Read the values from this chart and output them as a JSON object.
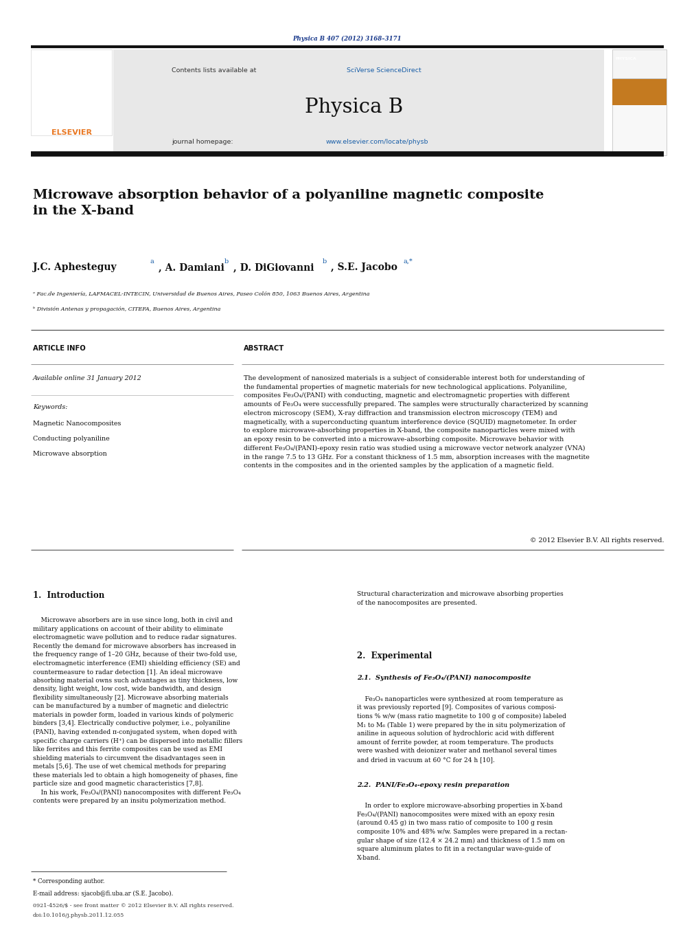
{
  "page_width": 9.92,
  "page_height": 13.23,
  "background_color": "#ffffff",
  "header_journal_ref": "Physica B 407 (2012) 3168–3171",
  "header_journal_ref_color": "#1a3a8c",
  "elsevier_text_color": "#e87722",
  "journal_name": "Physica B",
  "header_bg_color": "#e8e8e8",
  "sciverse_color": "#1a5fa8",
  "link_color": "#1a5fa8",
  "paper_title": "Microwave absorption behavior of a polyaniline magnetic composite\nin the X-band",
  "affil_a": "ᵃ Fac.de Ingeniería, LAFMACEL-INTECIN, Universidad de Buenos Aires, Paseo Colón 850, 1063 Buenos Aires, Argentina",
  "affil_b": "ᵇ División Antenas y propagación, CITEFA, Buenos Aires, Argentina",
  "section_article_info": "ARTICLE INFO",
  "section_abstract": "ABSTRACT",
  "available_online": "Available online 31 January 2012",
  "keywords_header": "Keywords:",
  "keyword1": "Magnetic Nanocomposites",
  "keyword2": "Conducting polyaniline",
  "keyword3": "Microwave absorption",
  "abstract_text": "The development of nanosized materials is a subject of considerable interest both for understanding of\nthe fundamental properties of magnetic materials for new technological applications. Polyaniline,\ncomposites Fe₃O₄/(PANI) with conducting, magnetic and electromagnetic properties with different\namounts of Fe₃O₄ were successfully prepared. The samples were structurally characterized by scanning\nelectron microscopy (SEM), X-ray diffraction and transmission electron microscopy (TEM) and\nmagnetically, with a superconducting quantum interference device (SQUID) magnetometer. In order\nto explore microwave-absorbing properties in X-band, the composite nanoparticles were mixed with\nan epoxy resin to be converted into a microwave-absorbing composite. Microwave behavior with\ndifferent Fe₃O₄/(PANI)-epoxy resin ratio was studied using a microwave vector network analyzer (VNA)\nin the range 7.5 to 13 GHz. For a constant thickness of 1.5 mm, absorption increases with the magnetite\ncontents in the composites and in the oriented samples by the application of a magnetic field.",
  "copyright_text": "© 2012 Elsevier B.V. All rights reserved.",
  "section1_title": "1.  Introduction",
  "section1_col1": "    Microwave absorbers are in use since long, both in civil and\nmilitary applications on account of their ability to eliminate\nelectromagnetic wave pollution and to reduce radar signatures.\nRecently the demand for microwave absorbers has increased in\nthe frequency range of 1–20 GHz, because of their two-fold use,\nelectromagnetic interference (EMI) shielding efficiency (SE) and\ncountermeasure to radar detection [1]. An ideal microwave\nabsorbing material owns such advantages as tiny thickness, low\ndensity, light weight, low cost, wide bandwidth, and design\nflexibility simultaneously [2]. Microwave absorbing materials\ncan be manufactured by a number of magnetic and dielectric\nmaterials in powder form, loaded in various kinds of polymeric\nbinders [3,4]. Electrically conductive polymer, i.e., polyaniline\n(PANI), having extended π-conjugated system, when doped with\nspecific charge carriers (H⁺) can be dispersed into metallic fillers\nlike ferrites and this ferrite composites can be used as EMI\nshielding materials to circumvent the disadvantages seen in\nmetals [5,6]. The use of wet chemical methods for preparing\nthese materials led to obtain a high homogeneity of phases, fine\nparticle size and good magnetic characteristics [7,8].\n    In his work, Fe₃O₄/(PANI) nanocomposites with different Fe₃O₄\ncontents were prepared by an insitu polymerization method.",
  "section1_col2": "Structural characterization and microwave absorbing properties\nof the nanocomposites are presented.",
  "section2_title": "2.  Experimental",
  "section21_title": "2.1.  Synthesis of Fe₃O₄/(PANI) nanocomposite",
  "section21_text": "    Fe₃O₄ nanoparticles were synthesized at room temperature as\nit was previously reported [9]. Composites of various composi-\ntions % w/w (mass ratio magnetite to 100 g of composite) labeled\nM₁ to M₆ (Table 1) were prepared by the in situ polymerization of\naniline in aqueous solution of hydrochloric acid with different\namount of ferrite powder, at room temperature. The products\nwere washed with deionizer water and methanol several times\nand dried in vacuum at 60 °C for 24 h [10].",
  "section22_title": "2.2.  PANI/Fe₃O₄-epoxy resin preparation",
  "section22_text": "    In order to explore microwave-absorbing properties in X-band\nFe₃O₄/(PANI) nanocomposites were mixed with an epoxy resin\n(around 0.45 g) in two mass ratio of composite to 100 g resin\ncomposite 10% and 48% w/w. Samples were prepared in a rectan-\ngular shape of size (12.4 × 24.2 mm) and thickness of 1.5 mm on\nsquare aluminum plates to fit in a rectangular wave-guide of\nX-band.",
  "footer_corresponding": "* Corresponding author.",
  "footer_email": "E-mail address: sjacob@fi.uba.ar (S.E. Jacobo).",
  "footer_issn": "0921-4526/$ - see front matter © 2012 Elsevier B.V. All rights reserved.",
  "footer_doi": "doi:10.1016/j.physb.2011.12.055"
}
